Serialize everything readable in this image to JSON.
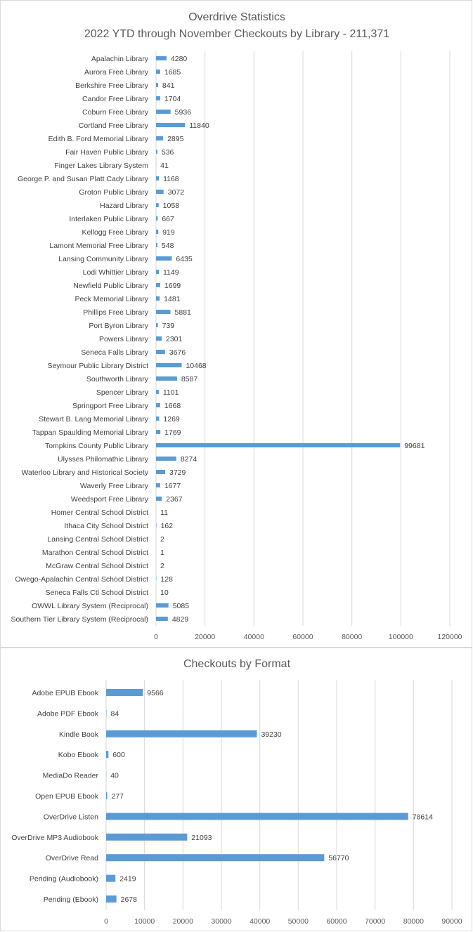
{
  "chart_data": [
    {
      "type": "bar",
      "orientation": "horizontal",
      "title_line1": "Overdrive Statistics",
      "title_line2": "2022 YTD through November Checkouts by Library - 211,371",
      "xlabel": "",
      "ylabel": "",
      "xlim": [
        0,
        120000
      ],
      "ticks": [
        "0",
        "20000",
        "40000",
        "60000",
        "80000",
        "100000",
        "120000"
      ],
      "tick_values": [
        0,
        20000,
        40000,
        60000,
        80000,
        100000,
        120000
      ],
      "grid": "vertical",
      "bar_color": "#5b9bd5",
      "categories": [
        "Apalachin Library",
        "Aurora Free Library",
        "Berkshire Free Library",
        "Candor Free Library",
        "Coburn Free Library",
        "Cortland Free Library",
        "Edith B. Ford Memorial Library",
        "Fair Haven Public Library",
        "Finger Lakes Library System",
        "George P. and Susan Platt Cady Library",
        "Groton Public Library",
        "Hazard Library",
        "Interlaken Public Library",
        "Kellogg Free Library",
        "Lamont Memorial Free Library",
        "Lansing Community Library",
        "Lodi Whittier Library",
        "Newfield Public Library",
        "Peck Memorial Library",
        "Phillips Free Library",
        "Port Byron Library",
        "Powers Library",
        "Seneca Falls Library",
        "Seymour Public Library District",
        "Southworth Library",
        "Spencer Library",
        "Springport Free Library",
        "Stewart B. Lang Memorial Library",
        "Tappan Spaulding Memorial Library",
        "Tompkins County Public Library",
        "Ulysses Philomathic Library",
        "Waterloo Library and Historical Society",
        "Waverly Free Library",
        "Weedsport Free Library",
        "Homer Central School District",
        "Ithaca City School District",
        "Lansing Central School District",
        "Marathon Central School District",
        "McGraw Central School District",
        "Owego-Apalachin Central School District",
        "Seneca Falls Ctl School District",
        "OWWL Library System (Reciprocal)",
        "Southern Tier Library System (Reciprocal)"
      ],
      "values": [
        4280,
        1685,
        841,
        1704,
        5936,
        11840,
        2895,
        536,
        41,
        1168,
        3072,
        1058,
        667,
        919,
        548,
        6435,
        1149,
        1699,
        1481,
        5881,
        739,
        2301,
        3676,
        10468,
        8587,
        1101,
        1668,
        1269,
        1769,
        99681,
        8274,
        3729,
        1677,
        2367,
        11,
        162,
        2,
        1,
        2,
        128,
        10,
        5085,
        4829
      ]
    },
    {
      "type": "bar",
      "orientation": "horizontal",
      "title": "Checkouts by Format",
      "xlabel": "",
      "ylabel": "",
      "xlim": [
        0,
        90000
      ],
      "ticks": [
        "0",
        "10000",
        "20000",
        "30000",
        "40000",
        "50000",
        "60000",
        "70000",
        "80000",
        "90000"
      ],
      "tick_values": [
        0,
        10000,
        20000,
        30000,
        40000,
        50000,
        60000,
        70000,
        80000,
        90000
      ],
      "grid": "vertical",
      "bar_color": "#5b9bd5",
      "categories": [
        "Adobe EPUB Ebook",
        "Adobe PDF Ebook",
        "Kindle Book",
        "Kobo Ebook",
        "MediaDo Reader",
        "Open EPUB Ebook",
        "OverDrive Listen",
        "OverDrive MP3 Audiobook",
        "OverDrive Read",
        "Pending (Audiobook)",
        "Pending (Ebook)"
      ],
      "values": [
        9566,
        84,
        39230,
        600,
        40,
        277,
        78614,
        21093,
        56770,
        2419,
        2678
      ]
    }
  ]
}
